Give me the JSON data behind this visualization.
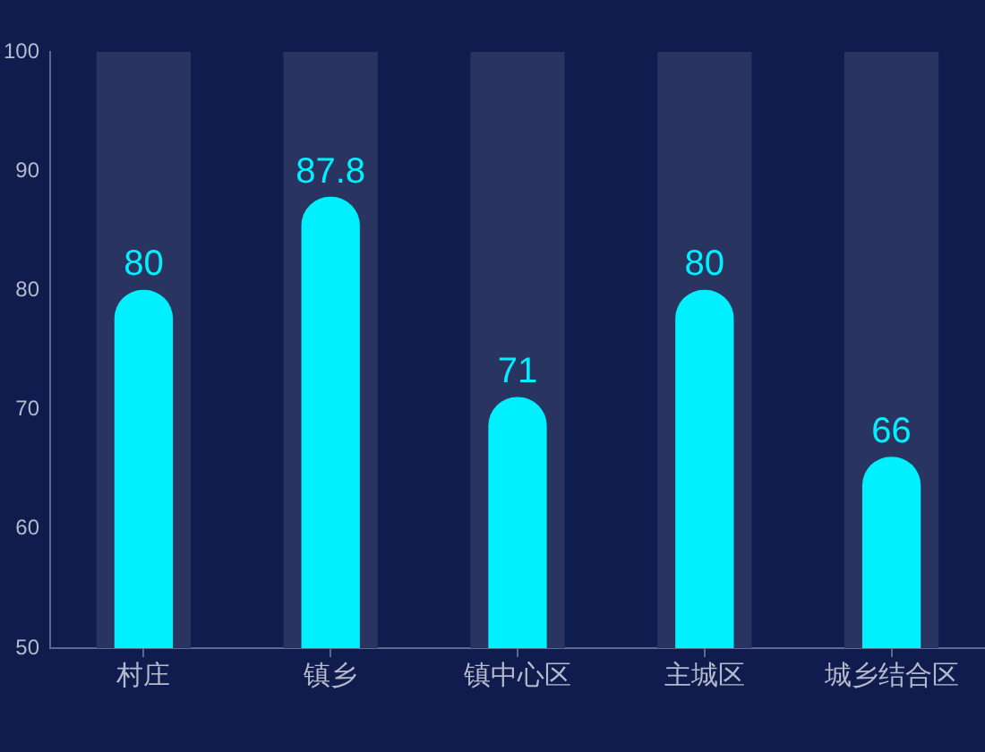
{
  "chart_data": {
    "type": "bar",
    "categories": [
      "村庄",
      "镇乡",
      "镇中心区",
      "主城区",
      "城乡结合区"
    ],
    "series": [
      {
        "color": "#00f0ff",
        "values": [
          80,
          87.8,
          71,
          80,
          66
        ],
        "value_labels": [
          "80",
          "87.8",
          "71",
          "80",
          "66"
        ]
      },
      {
        "color": "#2a3460",
        "values": [
          100,
          100,
          100,
          100,
          100
        ]
      }
    ],
    "ylim": [
      50,
      100
    ],
    "yticks": [
      50,
      60,
      70,
      80,
      90,
      100
    ],
    "grid": false,
    "legend": false
  }
}
